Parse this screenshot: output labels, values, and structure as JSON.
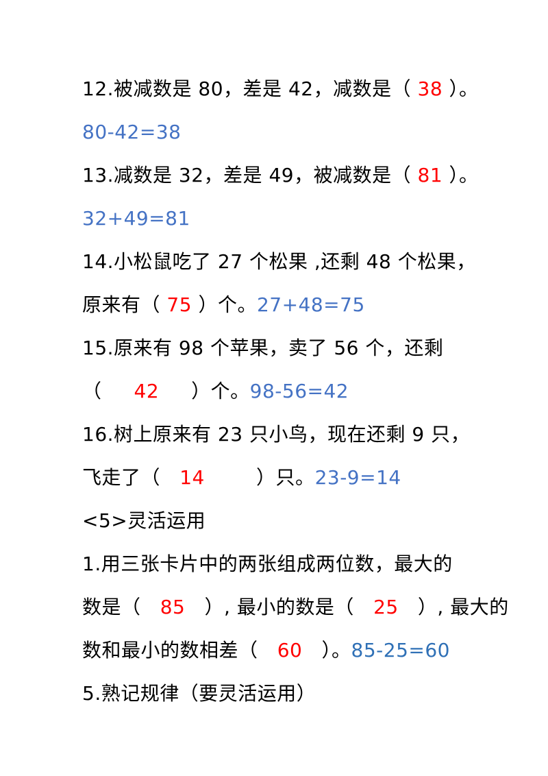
{
  "document": {
    "lines": [
      {
        "segments": [
          {
            "text": "12.被减数是 80，差是 42，减数是（ "
          },
          {
            "text": "38"
          },
          {
            "text": " ）。"
          }
        ]
      },
      {
        "segments": [
          {
            "text": "80-42=38"
          }
        ]
      },
      {
        "segments": [
          {
            "text": "13.减数是 32，差是 49，被减数是（ "
          },
          {
            "text": "81"
          },
          {
            "text": " ）。"
          }
        ]
      },
      {
        "segments": [
          {
            "text": "32+49=81"
          }
        ]
      },
      {
        "segments": [
          {
            "text": "14.小松鼠吃了 27 个松果 ,还剩 48 个松果，"
          }
        ]
      },
      {
        "segments": [
          {
            "text": "原来有（ "
          },
          {
            "text": "75"
          },
          {
            "text": " ）个。"
          },
          {
            "text": "27+48=75"
          }
        ]
      },
      {
        "segments": [
          {
            "text": "15.原来有 98 个苹果，卖了 56 个，还剩"
          }
        ]
      },
      {
        "segments": [
          {
            "text": "（     "
          },
          {
            "text": "42"
          },
          {
            "text": "     ）个。"
          },
          {
            "text": "98-56=42"
          }
        ]
      },
      {
        "segments": [
          {
            "text": "16.树上原来有 23 只小鸟，现在还剩 9 只，"
          }
        ]
      },
      {
        "segments": [
          {
            "text": "飞走了（   "
          },
          {
            "text": "14"
          },
          {
            "text": "        ）只。"
          },
          {
            "text": "23-9=14"
          }
        ]
      },
      {
        "segments": [
          {
            "text": "<5>灵活运用"
          }
        ]
      },
      {
        "segments": [
          {
            "text": "1.用三张卡片中的两张组成两位数，最大的"
          }
        ]
      },
      {
        "segments": [
          {
            "text": "数是（   "
          },
          {
            "text": "85"
          },
          {
            "text": "   ）, 最小的数是（   "
          },
          {
            "text": "25"
          },
          {
            "text": "   ）, 最大的"
          }
        ]
      },
      {
        "segments": [
          {
            "text": "数和最小的数相差（   "
          },
          {
            "text": "60"
          },
          {
            "text": "   ）。"
          },
          {
            "text": "85-25=60"
          }
        ]
      },
      {
        "segments": [
          {
            "text": "5.熟记规律（要灵活运用）"
          }
        ]
      }
    ]
  },
  "colors": {
    "text": "#000000",
    "answer": "#ff0000",
    "calculation": "#4472c4",
    "calculation_alt": "#2f70b6",
    "background": "#ffffff"
  }
}
